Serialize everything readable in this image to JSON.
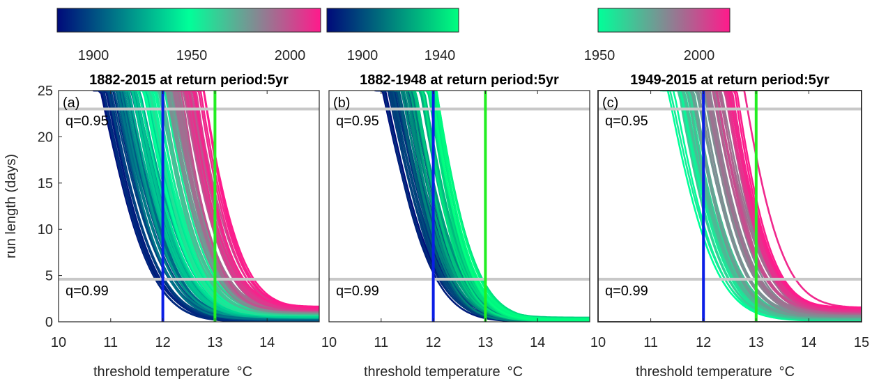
{
  "chart_data": [
    {
      "type": "line",
      "panel_label": "(a)",
      "title": "1882-2015 at return period:5yr",
      "xlabel": "threshold temperature",
      "xlabel_unit": "°C",
      "ylabel": "run length (days)",
      "xlim": [
        10,
        15
      ],
      "ylim": [
        0,
        25
      ],
      "xticks": [
        "10",
        "11",
        "12",
        "13",
        "14"
      ],
      "yticks": [
        "0",
        "5",
        "10",
        "15",
        "20",
        "25"
      ],
      "hlines": [
        {
          "y": 23,
          "label": "q=0.95",
          "color": "#c8c8c8"
        },
        {
          "y": 4.6,
          "label": "q=0.99",
          "color": "#c8c8c8"
        }
      ],
      "vlines": [
        {
          "x": 12,
          "color": "#0a1ee6"
        },
        {
          "x": 13,
          "color": "#22ee22"
        }
      ],
      "colorbar": {
        "range": [
          1882,
          2015
        ],
        "ticks": [
          "1900",
          "1950",
          "2000"
        ],
        "colors": [
          "#000a7a",
          "#00ff99",
          "#ff1a8c"
        ]
      },
      "curves": {
        "year_start": 1882,
        "year_end": 2015,
        "x_at_25": [
          10.9,
          12.7
        ],
        "slope": [
          0.52,
          0.35
        ],
        "decay": [
          1.6,
          0.9
        ],
        "floor": [
          0.15,
          1.5
        ]
      }
    },
    {
      "type": "line",
      "panel_label": "(b)",
      "title": "1882-1948 at return period:5yr",
      "xlabel": "threshold temperature",
      "xlabel_unit": "°C",
      "xlim": [
        10,
        15
      ],
      "ylim": [
        0,
        25
      ],
      "xticks": [
        "10",
        "11",
        "12",
        "13",
        "14"
      ],
      "yticks": [],
      "hlines": [
        {
          "y": 23,
          "label": "q=0.95",
          "color": "#c8c8c8"
        },
        {
          "y": 4.6,
          "label": "q=0.99",
          "color": "#c8c8c8"
        }
      ],
      "vlines": [
        {
          "x": 12,
          "color": "#0a1ee6"
        },
        {
          "x": 13,
          "color": "#22ee22"
        }
      ],
      "colorbar": {
        "range": [
          1882,
          1948
        ],
        "ticks": [
          "1900",
          "1940"
        ],
        "colors": [
          "#000a7a",
          "#00ff80"
        ]
      },
      "curves": {
        "year_start": 1882,
        "year_end": 1948,
        "x_at_25": [
          11.1,
          12.0
        ],
        "slope": [
          0.5,
          0.36
        ],
        "decay": [
          1.5,
          1.0
        ],
        "floor": [
          0.1,
          0.3
        ]
      }
    },
    {
      "type": "line",
      "panel_label": "(c)",
      "title": "1949-2015 at return period:5yr",
      "xlabel": "threshold temperature",
      "xlabel_unit": "°C",
      "xlim": [
        10,
        15
      ],
      "ylim": [
        0,
        25
      ],
      "xticks": [
        "10",
        "11",
        "12",
        "13",
        "14",
        "15"
      ],
      "yticks": [],
      "hlines": [
        {
          "y": 23,
          "label": "q=0.95",
          "color": "#c8c8c8"
        },
        {
          "y": 4.6,
          "label": "q=0.99",
          "color": "#c8c8c8"
        }
      ],
      "vlines": [
        {
          "x": 12,
          "color": "#0a1ee6"
        },
        {
          "x": 13,
          "color": "#22ee22"
        }
      ],
      "colorbar": {
        "range": [
          1949,
          2015
        ],
        "ticks": [
          "1950",
          "2000"
        ],
        "colors": [
          "#00ff99",
          "#ff1a8c"
        ]
      },
      "curves": {
        "year_start": 1949,
        "year_end": 2015,
        "x_at_25": [
          11.4,
          12.7
        ],
        "slope": [
          0.46,
          0.36
        ],
        "decay": [
          1.3,
          0.95
        ],
        "floor": [
          0.1,
          1.5
        ]
      }
    }
  ]
}
